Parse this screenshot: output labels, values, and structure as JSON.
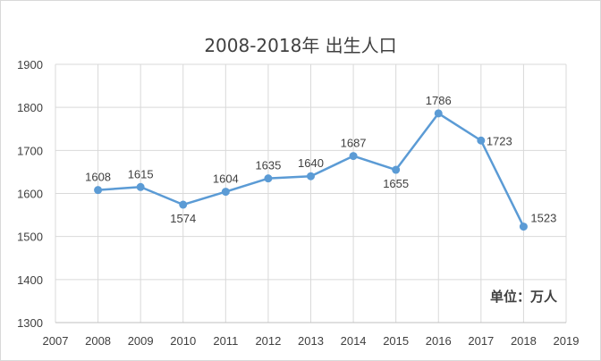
{
  "chart_data": {
    "type": "line",
    "title": "2008-2018年 出生人口",
    "unit_note": "单位：万人",
    "x_ticks": [
      "2007",
      "2008",
      "2009",
      "2010",
      "2011",
      "2012",
      "2013",
      "2014",
      "2015",
      "2016",
      "2017",
      "2018",
      "2019"
    ],
    "y_ticks": [
      "1300",
      "1400",
      "1500",
      "1600",
      "1700",
      "1800",
      "1900"
    ],
    "xlim": [
      2007,
      2019
    ],
    "ylim": [
      1300,
      1900
    ],
    "grid": true,
    "series": [
      {
        "x": [
          2008,
          2009,
          2010,
          2011,
          2012,
          2013,
          2014,
          2015,
          2016,
          2017,
          2018
        ],
        "values": [
          1608,
          1615,
          1574,
          1604,
          1635,
          1640,
          1687,
          1655,
          1786,
          1723,
          1523
        ],
        "labels": [
          "1608",
          "1615",
          "1574",
          "1604",
          "1635",
          "1640",
          "1687",
          "1655",
          "1786",
          "1723",
          "1523"
        ],
        "color": "#5b9bd5"
      }
    ]
  }
}
